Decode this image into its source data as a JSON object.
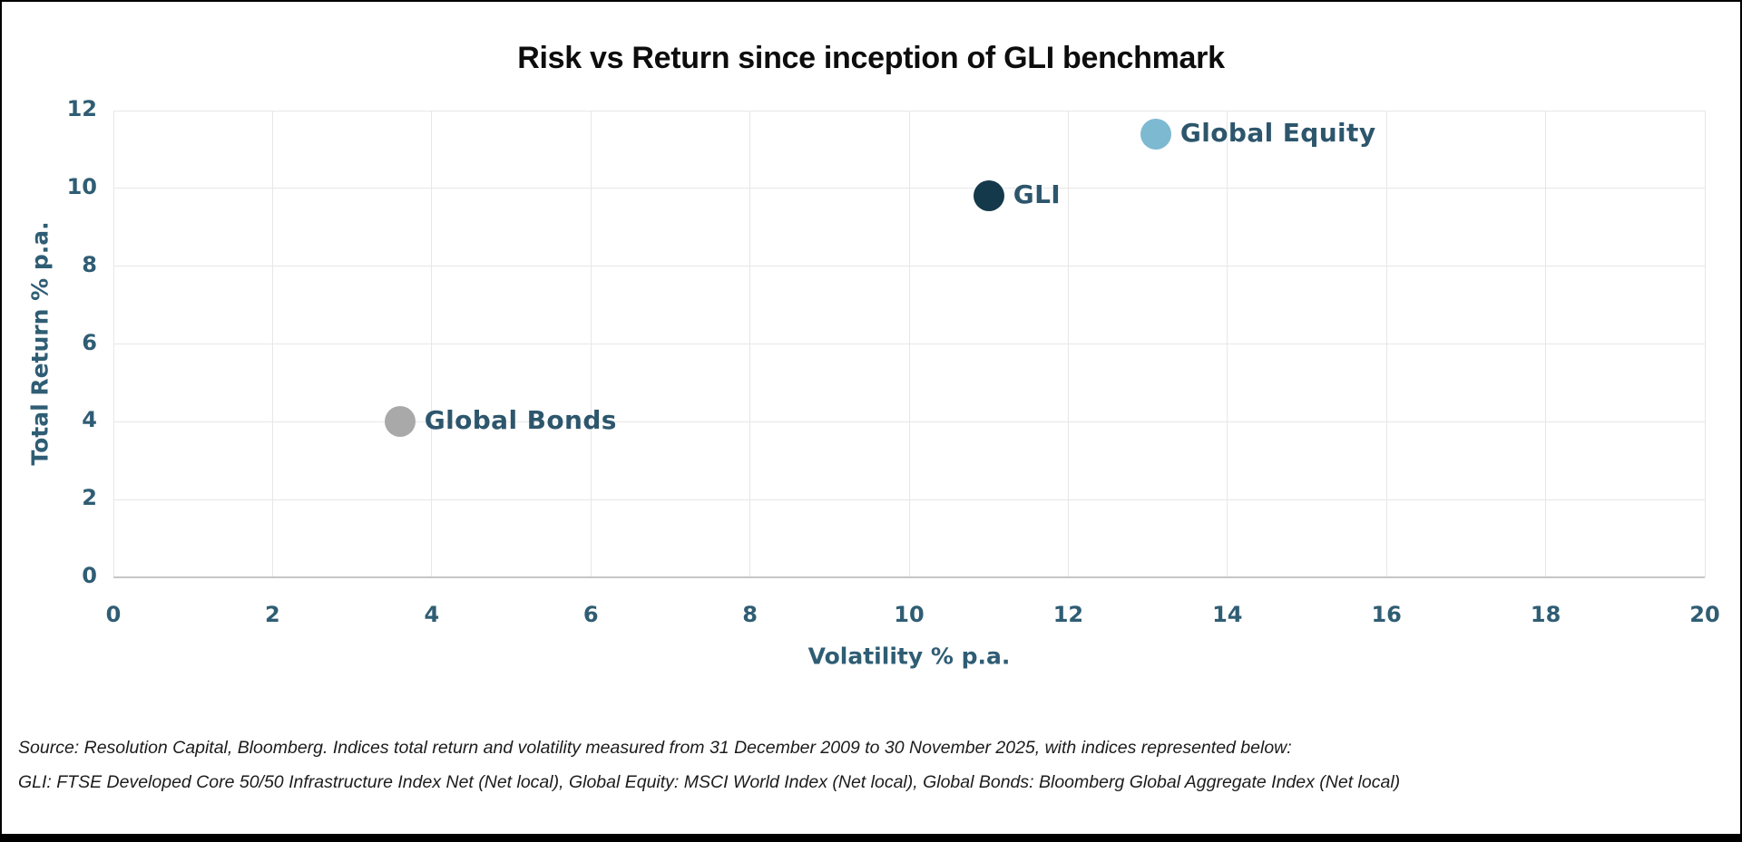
{
  "chart": {
    "title": "Risk vs Return since inception of GLI benchmark",
    "x_axis": {
      "title": "Volatility % p.a."
    },
    "y_axis": {
      "title": "Total Return % p.a."
    }
  },
  "chart_data": {
    "type": "scatter",
    "title": "Risk vs Return since inception of GLI benchmark",
    "xlabel": "Volatility % p.a.",
    "ylabel": "Total Return % p.a.",
    "xlim": [
      0,
      20
    ],
    "ylim": [
      0,
      12
    ],
    "x_ticks": [
      0,
      2,
      4,
      6,
      8,
      10,
      12,
      14,
      16,
      18,
      20
    ],
    "y_ticks": [
      0,
      2,
      4,
      6,
      8,
      10,
      12
    ],
    "grid": true,
    "legend": "none (points labeled directly)",
    "points": [
      {
        "label": "Global Equity",
        "x": 13.1,
        "y": 11.4,
        "color": "#7db9d1"
      },
      {
        "label": "GLI",
        "x": 11.0,
        "y": 9.8,
        "color": "#14394b"
      },
      {
        "label": "Global Bonds",
        "x": 3.6,
        "y": 4.0,
        "color": "#a9a9a9"
      }
    ]
  },
  "colors": {
    "label_text": "#2d566c",
    "tick_text": "#2f5d74",
    "grid": "#e7e7e7",
    "axis_line": "#c6c6c6"
  },
  "footer": {
    "line1": "Source: Resolution Capital, Bloomberg. Indices total return and volatility measured from 31 December 2009 to 30 November 2025, with indices represented below:",
    "line2": "GLI: FTSE Developed Core 50/50 Infrastructure Index Net (Net local), Global Equity: MSCI World Index (Net local), Global Bonds: Bloomberg Global Aggregate Index (Net local)"
  }
}
